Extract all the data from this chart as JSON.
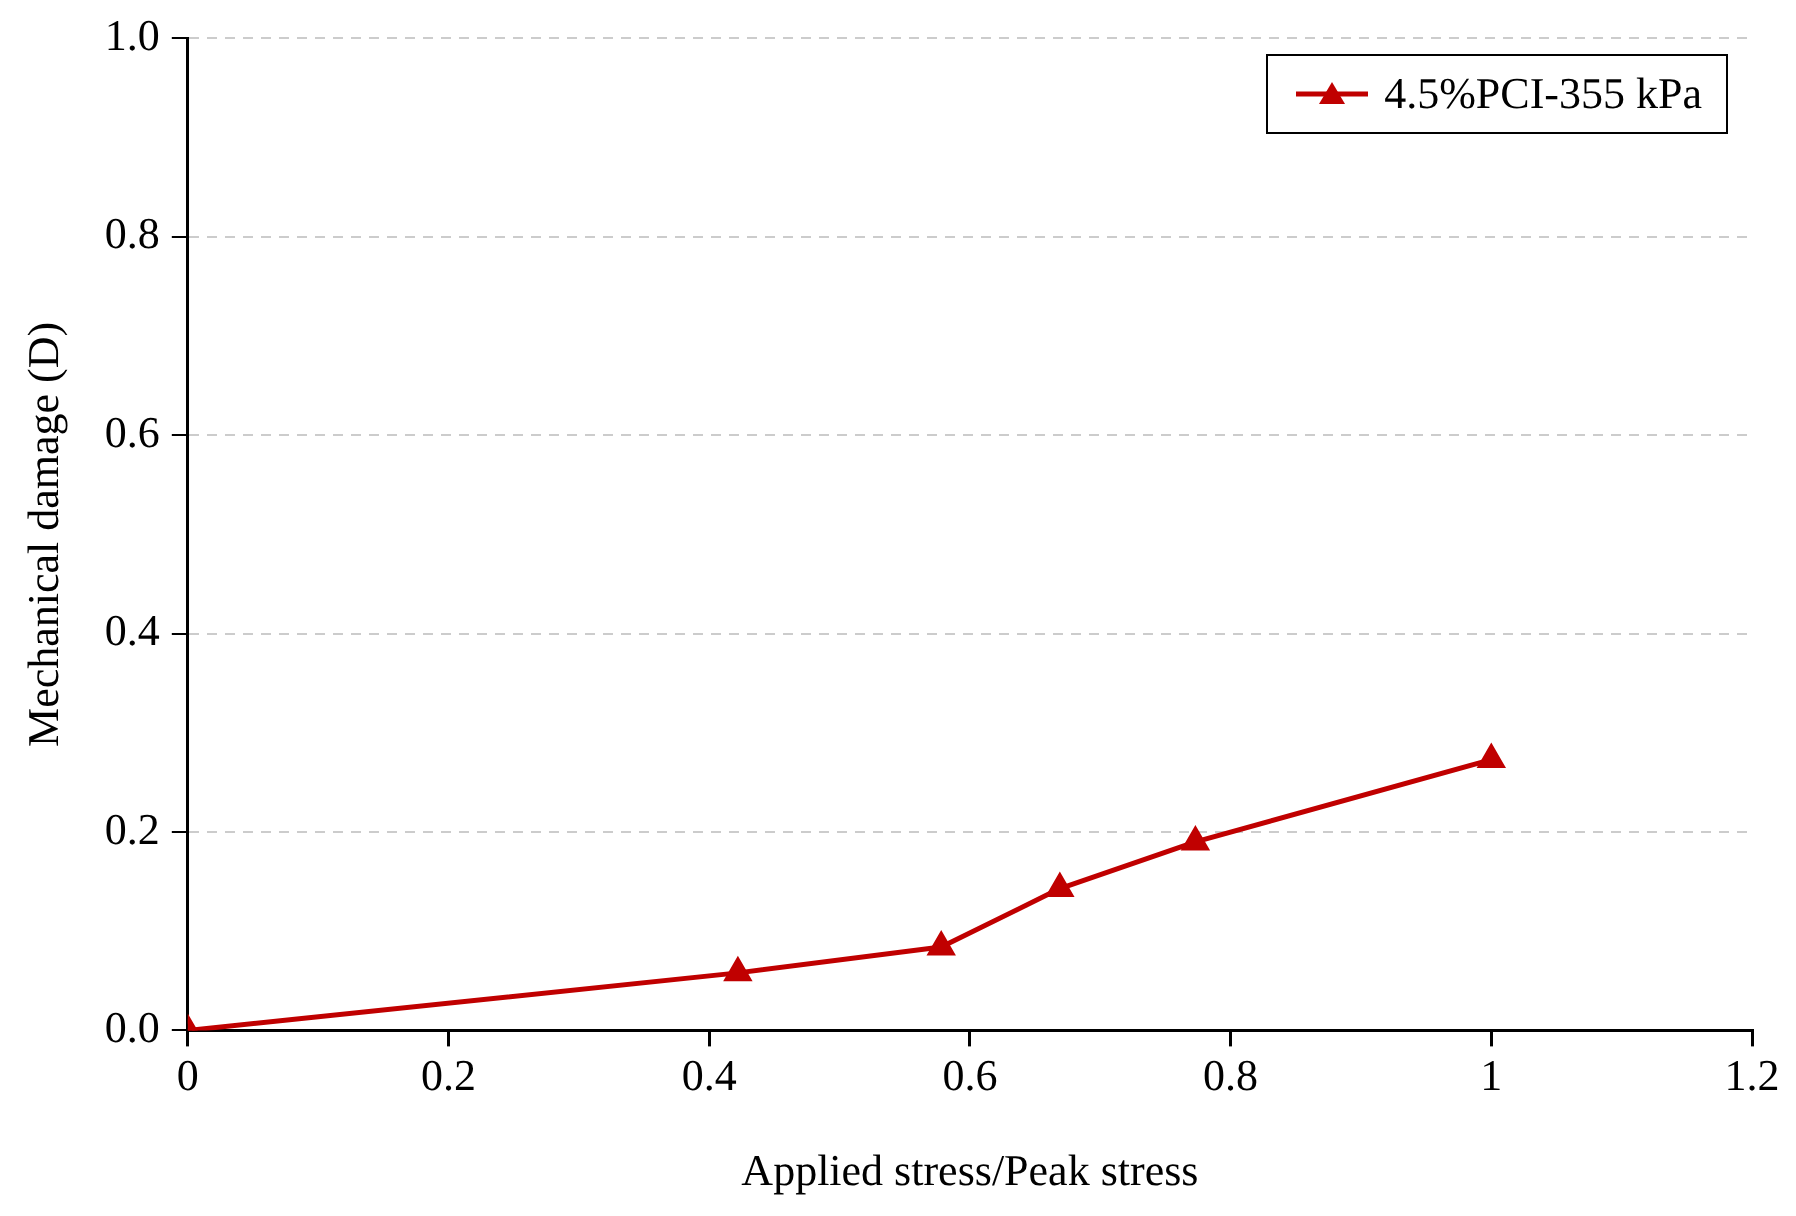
{
  "chart_data": {
    "type": "line",
    "xlabel": "Applied stress/Peak stress",
    "ylabel": "Mechanical damage (D)",
    "x": [
      0,
      0.422,
      0.578,
      0.669,
      0.773,
      1.0
    ],
    "series": [
      {
        "name": "4.5%PCI-355 kPa",
        "color": "#c00000",
        "values": [
          0,
          0.058,
          0.084,
          0.143,
          0.19,
          0.273
        ]
      }
    ],
    "xlim": [
      0,
      1.2
    ],
    "xticks": [
      0,
      0.2,
      0.4,
      0.6,
      0.8,
      1,
      1.2
    ],
    "ylim": [
      0,
      1.0
    ],
    "yticks": [
      {
        "value": 0,
        "label": "0.0"
      },
      {
        "value": 0.2,
        "label": "0.2"
      },
      {
        "value": 0.4,
        "label": "0.4"
      },
      {
        "value": 0.6,
        "label": "0.6"
      },
      {
        "value": 0.8,
        "label": "0.8"
      },
      {
        "value": 1,
        "label": "1.0"
      }
    ],
    "grid": "y",
    "legend": "top right",
    "marker": "triangle",
    "line_style": "solid"
  }
}
